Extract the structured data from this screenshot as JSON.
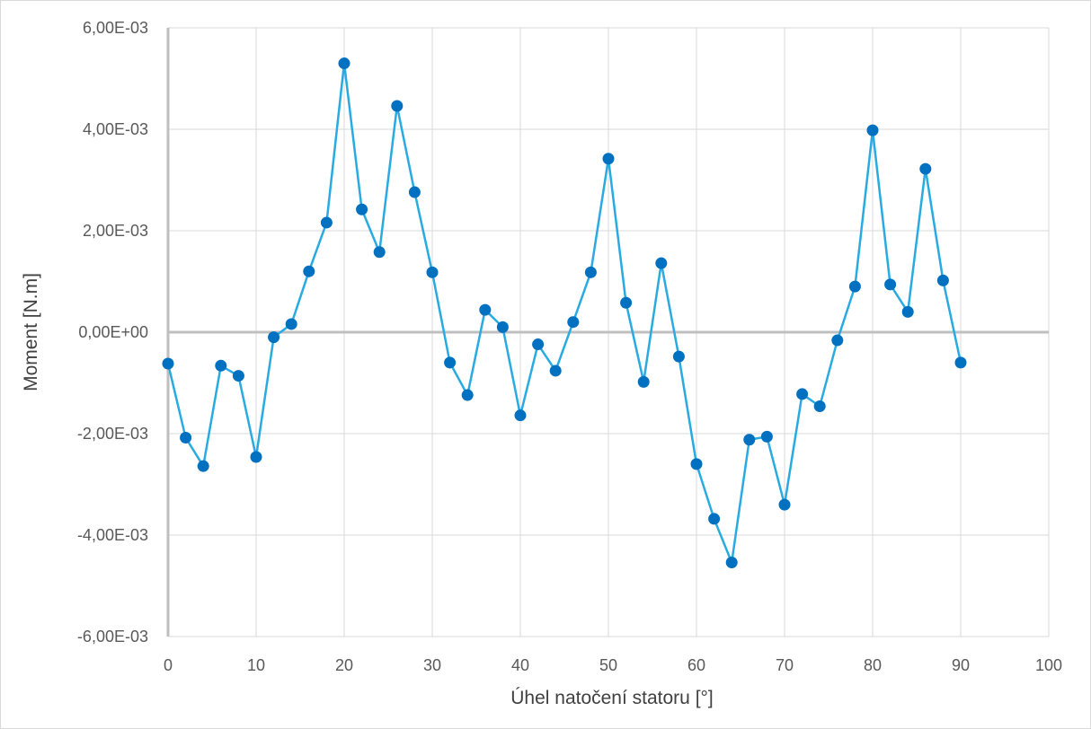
{
  "chart_data": {
    "type": "line",
    "title": "",
    "xlabel": "Úhel natočení statoru [°]",
    "ylabel": "Moment [N.m]",
    "xlim": [
      0,
      100
    ],
    "ylim": [
      -0.006,
      0.006
    ],
    "xticks": [
      0,
      10,
      20,
      30,
      40,
      50,
      60,
      70,
      80,
      90,
      100
    ],
    "xtick_labels": [
      "0",
      "10",
      "20",
      "30",
      "40",
      "50",
      "60",
      "70",
      "80",
      "90",
      "100"
    ],
    "yticks": [
      0.006,
      0.004,
      0.002,
      0,
      -0.002,
      -0.004,
      -0.006
    ],
    "ytick_labels": [
      "6,00E-03",
      "4,00E-03",
      "2,00E-03",
      "0,00E+00",
      "-2,00E-03",
      "-4,00E-03",
      "-6,00E-03"
    ],
    "grid": "vertical and horizontal major gridlines",
    "legend": "none",
    "colors": {
      "line": "#29abe2",
      "marker": "#0070c0",
      "grid": "#d9d9d9",
      "axis": "#bfbfbf"
    },
    "series": [
      {
        "x": [
          0,
          2,
          4,
          6,
          8,
          10,
          12,
          14,
          16,
          18,
          20,
          22,
          24,
          26,
          28,
          30,
          32,
          34,
          36,
          38,
          40,
          42,
          44,
          46,
          48,
          50,
          52,
          54,
          56,
          58,
          60,
          62,
          64,
          66,
          68,
          70,
          72,
          74,
          76,
          78,
          80,
          82,
          84,
          86,
          88,
          90
        ],
        "y": [
          -0.00062,
          -0.00208,
          -0.00264,
          -0.00066,
          -0.00086,
          -0.00246,
          -0.0001,
          0.00016,
          0.0012,
          0.00216,
          0.0053,
          0.00242,
          0.00158,
          0.00446,
          0.00276,
          0.00118,
          -0.0006,
          -0.00124,
          0.00044,
          0.0001,
          -0.00164,
          -0.00024,
          -0.00076,
          0.0002,
          0.00118,
          0.00342,
          0.00058,
          -0.00098,
          0.00136,
          -0.00048,
          -0.0026,
          -0.00368,
          -0.00454,
          -0.00212,
          -0.00206,
          -0.0034,
          -0.00122,
          -0.00146,
          -0.00016,
          0.0009,
          0.00398,
          0.00094,
          0.0004,
          0.00322,
          0.00102,
          -0.0006
        ]
      }
    ]
  }
}
